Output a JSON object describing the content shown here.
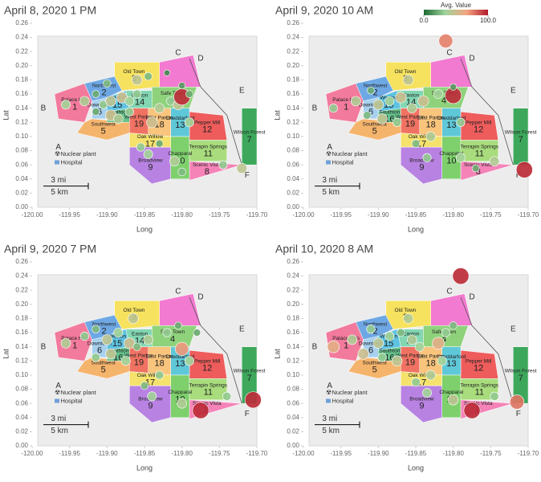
{
  "chart_data": [
    {
      "type": "scatter",
      "title": "April 8, 2020 1 PM",
      "xlabel": "Long",
      "ylabel": "Lat",
      "xlim": [
        -120.0,
        -119.7
      ],
      "ylim": [
        0,
        0.26
      ],
      "xticks": [
        {
          "value": -120.0,
          "label": "-120.00"
        },
        {
          "value": -119.95,
          "label": "-119.95"
        },
        {
          "value": -119.9,
          "label": "-119.90"
        },
        {
          "value": -119.85,
          "label": "-119.85"
        },
        {
          "value": -119.8,
          "label": "-119.80"
        },
        {
          "value": -119.75,
          "label": "-119.75"
        },
        {
          "value": -119.7,
          "label": "-119.70"
        }
      ],
      "yticks": [
        {
          "value": 0,
          "label": "0.00"
        },
        {
          "value": 0.02,
          "label": "0.02"
        },
        {
          "value": 0.04,
          "label": "0.04"
        },
        {
          "value": 0.06,
          "label": "0.06"
        },
        {
          "value": 0.08,
          "label": "0.08"
        },
        {
          "value": 0.1,
          "label": "0.10"
        },
        {
          "value": 0.12,
          "label": "0.12"
        },
        {
          "value": 0.14,
          "label": "0.14"
        },
        {
          "value": 0.16,
          "label": "0.16"
        },
        {
          "value": 0.18,
          "label": "0.18"
        },
        {
          "value": 0.2,
          "label": "0.20"
        },
        {
          "value": 0.22,
          "label": "0.22"
        },
        {
          "value": 0.24,
          "label": "0.24"
        },
        {
          "value": 0.26,
          "label": "0.26"
        }
      ],
      "x": [
        -119.955,
        -119.93,
        -119.915,
        -119.9,
        -119.905,
        -119.895,
        -119.88,
        -119.87,
        -119.86,
        -119.915,
        -119.895,
        -119.885,
        -119.87,
        -119.86,
        -119.845,
        -119.82,
        -119.84,
        -119.83,
        -119.815,
        -119.805,
        -119.8,
        -119.79,
        -119.8,
        -119.79,
        -119.83,
        -119.855,
        -119.845,
        -119.81,
        -119.8,
        -119.745,
        -119.72
      ],
      "values": [
        0.145,
        0.15,
        0.16,
        0.175,
        0.145,
        0.15,
        0.155,
        0.15,
        0.16,
        0.135,
        0.13,
        0.125,
        0.135,
        0.18,
        0.185,
        0.19,
        0.12,
        0.14,
        0.15,
        0.145,
        0.156,
        0.16,
        0.172,
        0.12,
        0.09,
        0.085,
        0.075,
        0.065,
        0.05,
        0.06,
        0.055
      ],
      "avg": [
        35,
        40,
        20,
        25,
        30,
        45,
        50,
        35,
        30,
        20,
        50,
        40,
        30,
        45,
        25,
        10,
        50,
        40,
        30,
        45,
        95,
        20,
        15,
        35,
        20,
        30,
        35,
        40,
        25,
        30,
        45
      ]
    },
    {
      "type": "scatter",
      "title": "April 9, 2020 10 AM",
      "xlabel": "Long",
      "ylabel": "Lat",
      "xlim": [
        -120.0,
        -119.7
      ],
      "ylim": [
        0,
        0.26
      ],
      "xticks": [
        {
          "value": -120.0,
          "label": "-120.00"
        },
        {
          "value": -119.95,
          "label": "-119.95"
        },
        {
          "value": -119.9,
          "label": "-119.90"
        },
        {
          "value": -119.85,
          "label": "-119.85"
        },
        {
          "value": -119.8,
          "label": "-119.80"
        },
        {
          "value": -119.75,
          "label": "-119.75"
        },
        {
          "value": -119.7,
          "label": "-119.70"
        }
      ],
      "yticks": [
        {
          "value": 0,
          "label": "0.00"
        },
        {
          "value": 0.02,
          "label": "0.02"
        },
        {
          "value": 0.04,
          "label": "0.04"
        },
        {
          "value": 0.06,
          "label": "0.06"
        },
        {
          "value": 0.08,
          "label": "0.08"
        },
        {
          "value": 0.1,
          "label": "0.10"
        },
        {
          "value": 0.12,
          "label": "0.12"
        },
        {
          "value": 0.14,
          "label": "0.14"
        },
        {
          "value": 0.16,
          "label": "0.16"
        },
        {
          "value": 0.18,
          "label": "0.18"
        },
        {
          "value": 0.2,
          "label": "0.20"
        },
        {
          "value": 0.22,
          "label": "0.22"
        },
        {
          "value": 0.24,
          "label": "0.24"
        },
        {
          "value": 0.26,
          "label": "0.26"
        }
      ],
      "x": [
        -119.96,
        -119.93,
        -119.91,
        -119.9,
        -119.885,
        -119.87,
        -119.855,
        -119.915,
        -119.895,
        -119.875,
        -119.84,
        -119.82,
        -119.8,
        -119.81,
        -119.79,
        -119.83,
        -119.85,
        -119.835,
        -119.79,
        -119.77,
        -119.745,
        -119.705,
        -119.86,
        -119.8
      ],
      "values": [
        0.14,
        0.15,
        0.165,
        0.145,
        0.15,
        0.155,
        0.14,
        0.13,
        0.125,
        0.12,
        0.15,
        0.16,
        0.158,
        0.235,
        0.12,
        0.1,
        0.09,
        0.07,
        0.07,
        0.055,
        0.065,
        0.053,
        0.18,
        0.17
      ],
      "avg": [
        30,
        40,
        20,
        45,
        35,
        50,
        40,
        25,
        45,
        30,
        50,
        35,
        95,
        75,
        30,
        40,
        25,
        30,
        35,
        20,
        40,
        95,
        45,
        15
      ]
    },
    {
      "type": "scatter",
      "title": "April 9, 2020 7 PM",
      "xlabel": "Long",
      "ylabel": "Lat",
      "xlim": [
        -120.0,
        -119.7
      ],
      "ylim": [
        0,
        0.26
      ],
      "xticks": [
        {
          "value": -120.0,
          "label": "-120.00"
        },
        {
          "value": -119.95,
          "label": "-119.95"
        },
        {
          "value": -119.9,
          "label": "-119.90"
        },
        {
          "value": -119.85,
          "label": "-119.85"
        },
        {
          "value": -119.8,
          "label": "-119.80"
        },
        {
          "value": -119.75,
          "label": "-119.75"
        },
        {
          "value": -119.7,
          "label": "-119.70"
        }
      ],
      "yticks": [
        {
          "value": 0,
          "label": "0.00"
        },
        {
          "value": 0.02,
          "label": "0.02"
        },
        {
          "value": 0.04,
          "label": "0.04"
        },
        {
          "value": 0.06,
          "label": "0.06"
        },
        {
          "value": 0.08,
          "label": "0.08"
        },
        {
          "value": 0.1,
          "label": "0.10"
        },
        {
          "value": 0.12,
          "label": "0.12"
        },
        {
          "value": 0.14,
          "label": "0.14"
        },
        {
          "value": 0.16,
          "label": "0.16"
        },
        {
          "value": 0.18,
          "label": "0.18"
        },
        {
          "value": 0.2,
          "label": "0.20"
        },
        {
          "value": 0.22,
          "label": "0.22"
        },
        {
          "value": 0.24,
          "label": "0.24"
        },
        {
          "value": 0.26,
          "label": "0.26"
        }
      ],
      "x": [
        -119.955,
        -119.93,
        -119.915,
        -119.9,
        -119.885,
        -119.87,
        -119.915,
        -119.895,
        -119.875,
        -119.86,
        -119.845,
        -119.82,
        -119.8,
        -119.79,
        -119.805,
        -119.83,
        -119.85,
        -119.84,
        -119.8,
        -119.775,
        -119.74,
        -119.705,
        -119.865,
        -119.78
      ],
      "values": [
        0.145,
        0.155,
        0.165,
        0.15,
        0.16,
        0.145,
        0.125,
        0.13,
        0.12,
        0.14,
        0.15,
        0.16,
        0.137,
        0.12,
        0.17,
        0.1,
        0.085,
        0.07,
        0.06,
        0.05,
        0.07,
        0.065,
        0.18,
        0.16
      ],
      "avg": [
        40,
        30,
        25,
        45,
        35,
        50,
        30,
        45,
        35,
        25,
        40,
        30,
        70,
        35,
        20,
        30,
        25,
        35,
        40,
        95,
        30,
        95,
        45,
        20
      ]
    },
    {
      "type": "scatter",
      "title": "April 10, 2020 8 AM",
      "xlabel": "Long",
      "ylabel": "Lat",
      "xlim": [
        -120.0,
        -119.7
      ],
      "ylim": [
        0,
        0.26
      ],
      "xticks": [
        {
          "value": -120.0,
          "label": "-120.00"
        },
        {
          "value": -119.95,
          "label": "-119.95"
        },
        {
          "value": -119.9,
          "label": "-119.90"
        },
        {
          "value": -119.85,
          "label": "-119.85"
        },
        {
          "value": -119.8,
          "label": "-119.80"
        },
        {
          "value": -119.75,
          "label": "-119.75"
        },
        {
          "value": -119.7,
          "label": "-119.70"
        }
      ],
      "yticks": [
        {
          "value": 0,
          "label": "0.00"
        },
        {
          "value": 0.02,
          "label": "0.02"
        },
        {
          "value": 0.04,
          "label": "0.04"
        },
        {
          "value": 0.06,
          "label": "0.06"
        },
        {
          "value": 0.08,
          "label": "0.08"
        },
        {
          "value": 0.1,
          "label": "0.10"
        },
        {
          "value": 0.12,
          "label": "0.12"
        },
        {
          "value": 0.14,
          "label": "0.14"
        },
        {
          "value": 0.16,
          "label": "0.16"
        },
        {
          "value": 0.18,
          "label": "0.18"
        },
        {
          "value": 0.2,
          "label": "0.20"
        },
        {
          "value": 0.22,
          "label": "0.22"
        },
        {
          "value": 0.24,
          "label": "0.24"
        },
        {
          "value": 0.26,
          "label": "0.26"
        }
      ],
      "x": [
        -119.96,
        -119.935,
        -119.91,
        -119.9,
        -119.885,
        -119.87,
        -119.855,
        -119.92,
        -119.895,
        -119.875,
        -119.845,
        -119.82,
        -119.81,
        -119.79,
        -119.8,
        -119.83,
        -119.85,
        -119.835,
        -119.8,
        -119.775,
        -119.715,
        -119.745,
        -119.86,
        -119.815
      ],
      "values": [
        0.14,
        0.15,
        0.165,
        0.145,
        0.155,
        0.16,
        0.15,
        0.13,
        0.125,
        0.12,
        0.14,
        0.145,
        0.16,
        0.24,
        0.17,
        0.1,
        0.09,
        0.075,
        0.065,
        0.05,
        0.062,
        0.07,
        0.18,
        0.12
      ],
      "avg": [
        60,
        40,
        30,
        45,
        35,
        25,
        40,
        50,
        30,
        45,
        35,
        60,
        30,
        95,
        25,
        40,
        30,
        35,
        45,
        95,
        78,
        30,
        40,
        35
      ]
    }
  ],
  "legend": {
    "title": "Avg. Value",
    "ticks": [
      {
        "value": 0,
        "label": "0.0"
      },
      {
        "value": 100,
        "label": "100.0"
      }
    ],
    "colors": [
      "#1e6b34",
      "#9fd49a",
      "#f4a582",
      "#b2182b"
    ]
  },
  "regions": [
    {
      "name": "Palace Hills",
      "number": "1"
    },
    {
      "name": "Northwest",
      "number": "2"
    },
    {
      "name": "Old Town",
      "number": "3"
    },
    {
      "name": "Safe Town",
      "number": "4"
    },
    {
      "name": "Southwest",
      "number": "5"
    },
    {
      "name": "Downtown",
      "number": "6"
    },
    {
      "name": "Wilson Forest",
      "number": "7"
    },
    {
      "name": "Scenic Vista",
      "number": "8"
    },
    {
      "name": "Broadview",
      "number": "9"
    },
    {
      "name": "Chapparal",
      "number": "10"
    },
    {
      "name": "Terrapin Springs",
      "number": "11"
    },
    {
      "name": "Pepper Mill",
      "number": "12"
    },
    {
      "name": "Cheddarford",
      "number": "13"
    },
    {
      "name": "Easton",
      "number": "14"
    },
    {
      "name": "Weston",
      "number": "15"
    },
    {
      "name": "Southton",
      "number": "16"
    },
    {
      "name": "Oak Willow",
      "number": "17"
    },
    {
      "name": "East Parton",
      "number": "18"
    },
    {
      "name": "West Parton",
      "number": "19"
    }
  ],
  "map_text": {
    "letters": [
      "A",
      "B",
      "C",
      "D",
      "E",
      "F"
    ],
    "nuclear": "Nuclear plant",
    "hospital": "Hospital",
    "scale_mi": "3 mi",
    "scale_km": "5 km"
  }
}
